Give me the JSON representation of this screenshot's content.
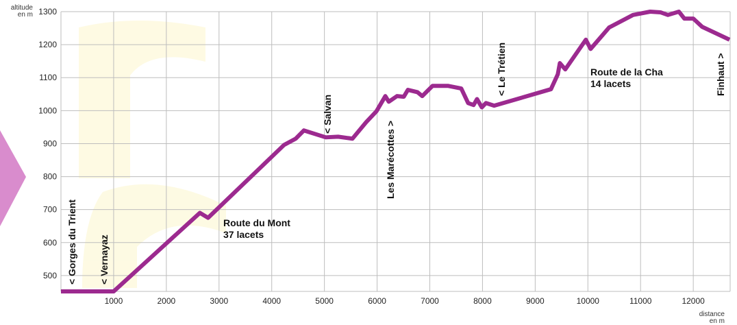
{
  "chart_data": {
    "type": "line",
    "y_label": "altitude",
    "y_unit": "en m",
    "x_label": "distance",
    "x_unit": "en m",
    "xlim": [
      0,
      12700
    ],
    "ylim": [
      452,
      1300
    ],
    "xticks": [
      1000,
      2000,
      3000,
      4000,
      5000,
      6000,
      7000,
      8000,
      9000,
      10000,
      11000,
      12000
    ],
    "yticks": [
      500,
      600,
      700,
      800,
      900,
      1000,
      1100,
      1200,
      1300
    ],
    "grid": true,
    "annotations": [
      "< Gorges du Trient",
      "< Vernayaz",
      "Route du Mont",
      "37 lacets",
      "< Salvan",
      "Les Marécottes >",
      "< Le Trétien",
      "Route de la Cha",
      "14 lacets",
      "Finhaut >"
    ],
    "series": [
      {
        "color": "#9c2a8f",
        "x": [
          0,
          1000,
          2636,
          2792,
          4234,
          4455,
          4610,
          5026,
          5260,
          5532,
          5792,
          5987,
          6156,
          6221,
          6377,
          6506,
          6584,
          6766,
          6857,
          7052,
          7351,
          7597,
          7727,
          7831,
          7896,
          7987,
          8065,
          8221,
          9299,
          9429,
          9468,
          9571,
          9961,
          10052,
          10403,
          10857,
          11182,
          11377,
          11519,
          11727,
          11831,
          12000,
          12169,
          12688
        ],
        "values": [
          452,
          452,
          690,
          675,
          896,
          915,
          940,
          919,
          921,
          915,
          965,
          998,
          1044,
          1027,
          1044,
          1042,
          1063,
          1056,
          1044,
          1075,
          1075,
          1067,
          1023,
          1017,
          1035,
          1010,
          1023,
          1015,
          1065,
          1110,
          1144,
          1125,
          1215,
          1187,
          1252,
          1290,
          1300,
          1298,
          1290,
          1300,
          1279,
          1279,
          1254,
          1215
        ]
      }
    ]
  }
}
